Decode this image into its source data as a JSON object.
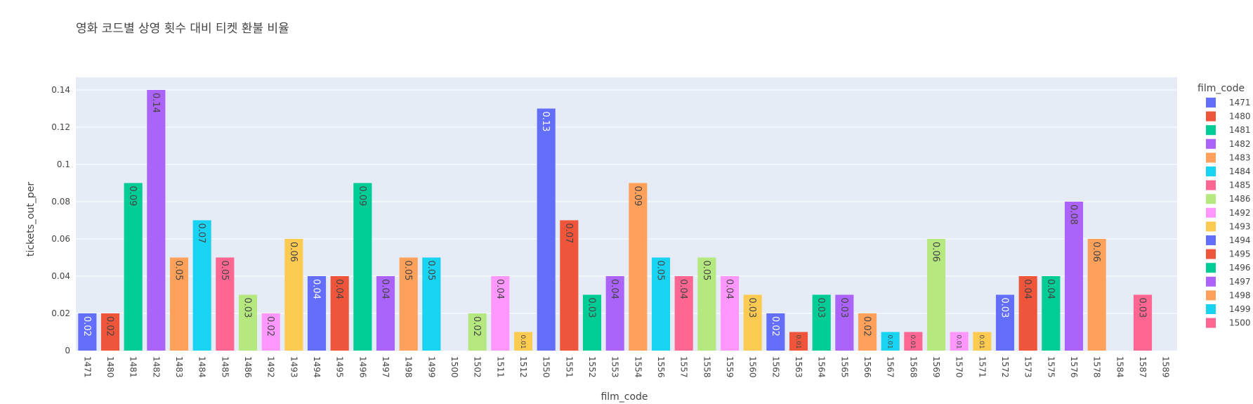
{
  "chart_data": {
    "type": "bar",
    "title": "영화 코드별 상영 횟수 대비 티켓 환불 비율",
    "xlabel": "film_code",
    "ylabel": "tickets_out_per",
    "ylim": [
      0,
      0.14
    ],
    "yticks": [
      "0",
      "0.02",
      "0.04",
      "0.06",
      "0.08",
      "0.1",
      "0.12",
      "0.14"
    ],
    "grid": true,
    "legend_title": "film_code",
    "legend_position": "right",
    "categories": [
      "1471",
      "1480",
      "1481",
      "1482",
      "1483",
      "1484",
      "1485",
      "1486",
      "1492",
      "1493",
      "1494",
      "1495",
      "1496",
      "1497",
      "1498",
      "1499",
      "1500",
      "1502",
      "1511",
      "1512",
      "1550",
      "1551",
      "1552",
      "1553",
      "1554",
      "1556",
      "1557",
      "1558",
      "1559",
      "1560",
      "1562",
      "1563",
      "1564",
      "1565",
      "1566",
      "1567",
      "1568",
      "1569",
      "1570",
      "1571",
      "1572",
      "1573",
      "1575",
      "1576",
      "1578",
      "1584",
      "1587",
      "1589"
    ],
    "values": [
      0.02,
      0.02,
      0.09,
      0.14,
      0.05,
      0.07,
      0.05,
      0.03,
      0.02,
      0.06,
      0.04,
      0.04,
      0.09,
      0.04,
      0.05,
      0.05,
      0,
      0.02,
      0.04,
      0.01,
      0.13,
      0.07,
      0.03,
      0.04,
      0.09,
      0.05,
      0.04,
      0.05,
      0.04,
      0.03,
      0.02,
      0.01,
      0.03,
      0.03,
      0.02,
      0.01,
      0.01,
      0.06,
      0.01,
      0.01,
      0.03,
      0.04,
      0.04,
      0.08,
      0.06,
      0,
      0.03,
      0
    ],
    "data_labels": [
      "0.02",
      "0.02",
      "0.09",
      "0.14",
      "0.05",
      "0.07",
      "0.05",
      "0.03",
      "0.02",
      "0.06",
      "0.04",
      "0.04",
      "0.09",
      "0.04",
      "0.05",
      "0.05",
      "",
      "0.02",
      "0.04",
      "0.01",
      "0.13",
      "0.07",
      "0.03",
      "0.04",
      "0.09",
      "0.05",
      "0.04",
      "0.05",
      "0.04",
      "0.03",
      "0.02",
      "0.01",
      "0.03",
      "0.03",
      "0.02",
      "0.01",
      "0.01",
      "0.06",
      "0.01",
      "0.01",
      "0.03",
      "0.04",
      "0.04",
      "0.08",
      "0.06",
      "",
      "0.03",
      ""
    ],
    "palette": [
      "#636efa",
      "#EF553B",
      "#00cc96",
      "#ab63fa",
      "#FFA15A",
      "#19d3f3",
      "#FF6692",
      "#B6E880",
      "#FF97FF",
      "#FECB52"
    ],
    "label_colors": [
      "#ffffff",
      "#444444",
      "#444444",
      "#444444",
      "#444444",
      "#444444",
      "#444444",
      "#444444",
      "#444444",
      "#444444"
    ],
    "legend_entries": [
      "1471",
      "1480",
      "1481",
      "1482",
      "1483",
      "1484",
      "1485",
      "1486",
      "1492",
      "1493",
      "1494",
      "1495",
      "1496",
      "1497",
      "1498",
      "1499",
      "1500"
    ],
    "plot_background": "#E5ECF6"
  }
}
